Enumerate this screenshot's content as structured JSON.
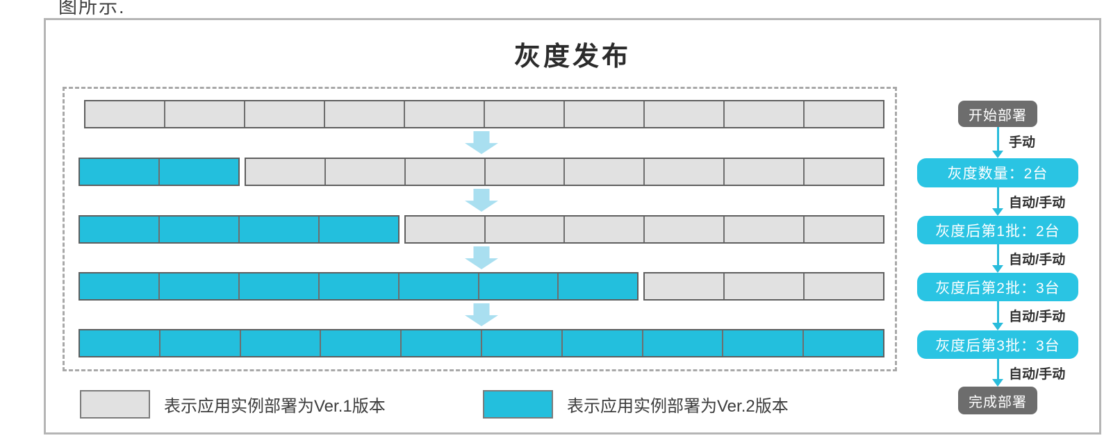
{
  "caption": "图所示.",
  "title": "灰度发布",
  "colors": {
    "cell_gray": "#e1e1e1",
    "cell_cyan": "#23bfdd",
    "cell_border": "#5e5e5e",
    "flow_step_cyan": "#2ac4e3",
    "flow_terminal_gray": "#6d6d6d",
    "big_arrow_light_blue": "#a9dff0",
    "connector_cyan": "#29bcdb",
    "frame_gray": "#b5b5b5",
    "dashed_gray": "#a8a8a8"
  },
  "rows": [
    {
      "name": "row-initial",
      "ver2_count": 0,
      "ver1_count": 10
    },
    {
      "name": "row-gray-quantity",
      "ver2_count": 2,
      "ver1_count": 8
    },
    {
      "name": "row-batch-1",
      "ver2_count": 4,
      "ver1_count": 6
    },
    {
      "name": "row-batch-2",
      "ver2_count": 7,
      "ver1_count": 3
    },
    {
      "name": "row-batch-3",
      "ver2_count": 10,
      "ver1_count": 0
    }
  ],
  "legend": [
    {
      "label": "表示应用实例部署为Ver.1版本",
      "color_key": "cell_gray"
    },
    {
      "label": "表示应用实例部署为Ver.2版本",
      "color_key": "cell_cyan"
    }
  ],
  "flow": {
    "nodes": [
      {
        "type": "terminal",
        "label": "开始部署"
      },
      {
        "type": "step",
        "label": "灰度数量：2台"
      },
      {
        "type": "step",
        "label": "灰度后第1批：2台"
      },
      {
        "type": "step",
        "label": "灰度后第2批：3台"
      },
      {
        "type": "step",
        "label": "灰度后第3批：3台"
      },
      {
        "type": "terminal",
        "label": "完成部署"
      }
    ],
    "edges": [
      {
        "label": "手动"
      },
      {
        "label": "自动/手动"
      },
      {
        "label": "自动/手动"
      },
      {
        "label": "自动/手动"
      },
      {
        "label": "自动/手动"
      }
    ]
  }
}
